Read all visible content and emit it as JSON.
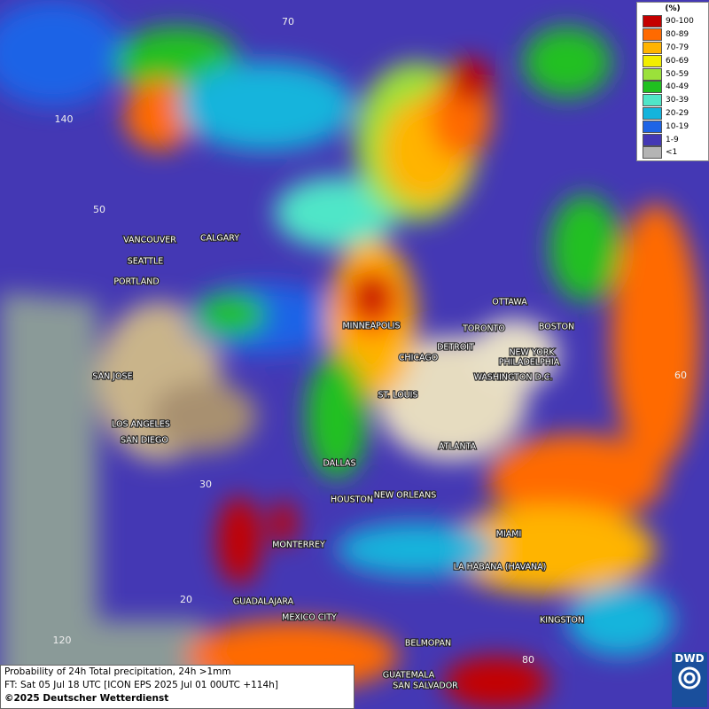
{
  "legend": {
    "title": "(%)",
    "items": [
      {
        "label": "90-100",
        "color": "#c40000"
      },
      {
        "label": "80-89",
        "color": "#ff6a00"
      },
      {
        "label": "70-79",
        "color": "#ffb400"
      },
      {
        "label": "60-69",
        "color": "#f2ee00"
      },
      {
        "label": "50-59",
        "color": "#9be13a"
      },
      {
        "label": "40-49",
        "color": "#20c020"
      },
      {
        "label": "30-39",
        "color": "#50e6c8"
      },
      {
        "label": "20-29",
        "color": "#14b4dc"
      },
      {
        "label": "10-19",
        "color": "#1e64e6"
      },
      {
        "label": "1-9",
        "color": "#4438b4"
      },
      {
        "label": "<1",
        "color": "#b4b4b4"
      }
    ]
  },
  "cities": [
    "VANCOUVER",
    "CALGARY",
    "SEATTLE",
    "PORTLAND",
    "SAN JOSE",
    "LOS ANGELES",
    "SAN DIEGO",
    "MINNEAPOLIS",
    "OTTAWA",
    "TORONTO",
    "BOSTON",
    "DETROIT",
    "NEW YORK",
    "CHICAGO",
    "PHILADELPHIA",
    "WASHINGTON D.C.",
    "ST. LOUIS",
    "ATLANTA",
    "DALLAS",
    "HOUSTON",
    "NEW ORLEANS",
    "MIAMI",
    "MONTERREY",
    "LA HABANA (HAVANA)",
    "GUADALAJARA",
    "MEXICO CITY",
    "KINGSTON",
    "BELMOPAN",
    "GUATEMALA",
    "SAN SALVADOR"
  ],
  "grid_labels": [
    "70",
    "140",
    "50",
    "60",
    "30",
    "20",
    "120",
    "80"
  ],
  "footer": {
    "line1": "Probability of 24h Total precipitation, 24h >1mm",
    "line2": "FT: Sat 05 Jul 18 UTC [ICON EPS 2025 Jul 01 00UTC +114h]",
    "line3": "©2025 Deutscher Wetterdienst"
  },
  "logo": "DWD"
}
